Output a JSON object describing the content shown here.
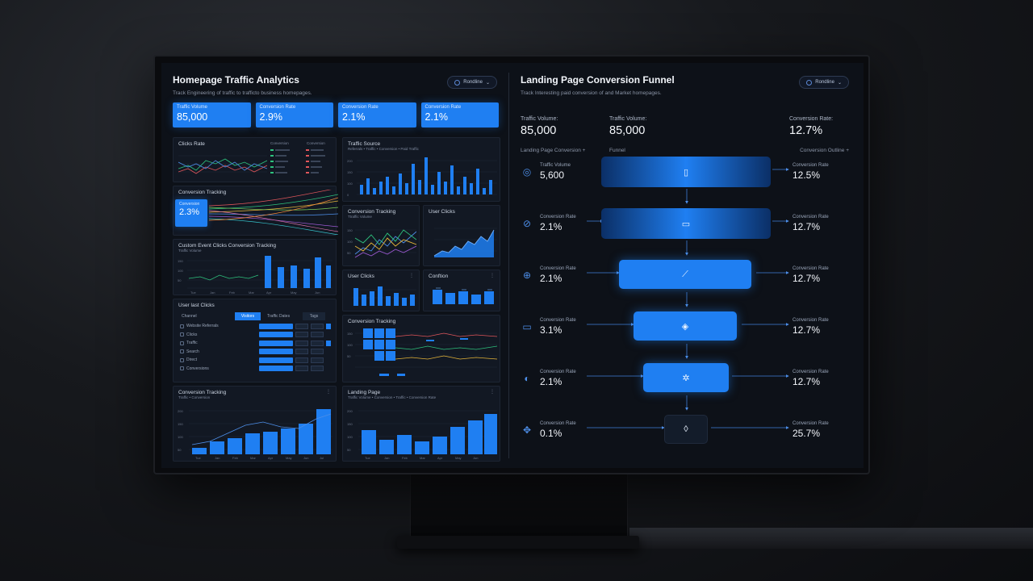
{
  "left": {
    "title": "Homepage Traffic Analytics",
    "subtitle": "Track Engineering of traffic to trafficto business homepages.",
    "filter_label": "Rondline",
    "kpis": [
      {
        "label": "Traffic Volume",
        "value": "85,000"
      },
      {
        "label": "Conversion Rate",
        "value": "2.9%"
      },
      {
        "label": "Conversion Rate",
        "value": "2.1%"
      },
      {
        "label": "Conversion Rate",
        "value": "2.1%"
      }
    ],
    "cards": {
      "clicks_rate": {
        "title": "Clicks Rate",
        "col2": "Conversion",
        "col3": "Conversion"
      },
      "traffic_source": {
        "title": "Traffic Source",
        "legend": "Referrals • Traffic • Conversion • Paid Traffic"
      },
      "conversion_tracking_1": {
        "title": "Conversion Tracking",
        "chip_label": "Conversion",
        "chip_value": "2.3%"
      },
      "conversion_tracking_2": {
        "title": "Conversion Tracking",
        "legend": "Ttraffic Volume"
      },
      "user_clicks_1": {
        "title": "User Clicks"
      },
      "custom_clicks": {
        "title": "Custom Event Clicks Conversion Tracking",
        "sub": "Traffic Volume"
      },
      "user_clicks_2": {
        "title": "User Clicks"
      },
      "conv_small": {
        "title": "Conftion"
      },
      "user_last_clicks": {
        "title": "User last Clicks",
        "headers": [
          "Channel",
          "Visitors",
          "Traffic Dates",
          "Tags"
        ],
        "rows": [
          "Website Referrals",
          "Clicks",
          "Traffic",
          "Search",
          "Direct",
          "Conversions"
        ]
      },
      "conversion_tracking_3": {
        "title": "Conversion Tracking"
      },
      "conversion_tracking_4": {
        "title": "Conversion Tracking",
        "legend": "Traffic • Conversion"
      },
      "landing_page": {
        "title": "Landing Page",
        "legend": "Traffic Volume • Conversion • Traffic • Conversion Rate"
      }
    },
    "x_ticks": [
      "Tue",
      "Jan",
      "Feb",
      "Mar",
      "Apr",
      "May",
      "Jun",
      "Jul",
      "Aug"
    ],
    "y_ticks": [
      "200",
      "150",
      "100",
      "50",
      "0"
    ]
  },
  "right": {
    "title": "Landing Page Conversion Funnel",
    "subtitle": "Track Interesting paid conversion of and Market homepages.",
    "filter_label": "Rondline",
    "kpis": [
      {
        "label": "Traffic Volume:",
        "value": "85,000"
      },
      {
        "label": "Traffic Volume:",
        "value": "85,000"
      },
      {
        "label": "Conversion Rate:",
        "value": "12.7%"
      }
    ],
    "heads": {
      "left": "Landing Page Conversion  +",
      "mid": "Funnel",
      "right": "Conversion Outline  +"
    },
    "stages": [
      {
        "icon": "mobile-icon",
        "left_label": "Traffic Volume",
        "left_value": "5,600",
        "right_label": "Conversion Rate",
        "right_value": "12.5%"
      },
      {
        "icon": "tag-icon",
        "left_label": "Conversion Rate",
        "left_value": "2.1%",
        "right_label": "Conversion Rate",
        "right_value": "12.7%"
      },
      {
        "icon": "target-icon",
        "left_label": "Conversion Rate",
        "left_value": "2.1%",
        "right_label": "Conversion Rate",
        "right_value": "12.7%"
      },
      {
        "icon": "card-icon",
        "left_label": "Conversion Rate",
        "left_value": "3.1%",
        "right_label": "Conversion Rate",
        "right_value": "12.7%"
      },
      {
        "icon": "shield-icon",
        "left_label": "Conversion Rate",
        "left_value": "2.1%",
        "right_label": "Conversion Rate",
        "right_value": "12.7%"
      },
      {
        "icon": "network-icon",
        "left_label": "Conversion Rate",
        "left_value": "0.1%",
        "right_label": "Conversion Rate",
        "right_value": "25.7%"
      }
    ]
  },
  "colors": {
    "accent": "#1f7ff2",
    "panel": "#121823",
    "background": "#0d1118"
  }
}
